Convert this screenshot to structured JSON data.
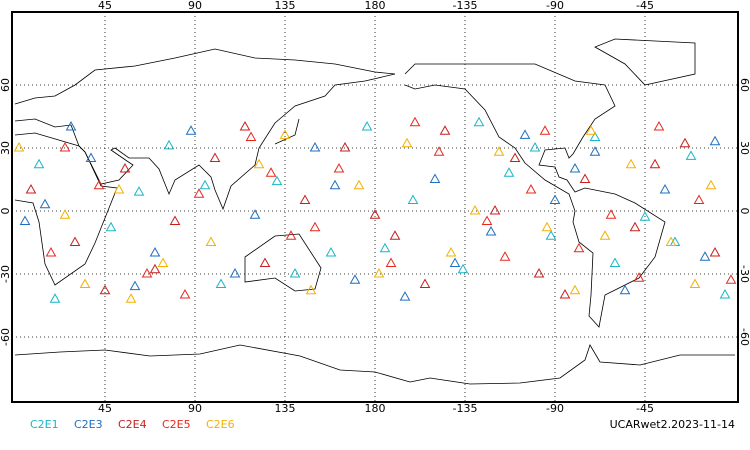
{
  "map": {
    "xlim": [
      0,
      360
    ],
    "ylim": [
      -90,
      90
    ],
    "xticks": [
      45,
      90,
      135,
      180,
      {
        "value": 225,
        "label": "-135"
      },
      {
        "value": 270,
        "label": "-90"
      },
      {
        "value": 315,
        "label": "-45"
      }
    ],
    "yticks": [
      60,
      30,
      0,
      -30,
      -60
    ],
    "series": [
      {
        "name": "C2E1",
        "color": "#17b6c8",
        "lon": [
          12,
          48,
          77,
          103,
          131,
          158,
          176,
          199,
          224,
          247,
          268,
          290,
          315,
          338,
          355,
          62,
          140,
          185,
          232,
          300,
          20,
          95,
          260,
          330
        ],
        "lat": [
          22,
          -8,
          31,
          -35,
          14,
          -20,
          40,
          5,
          -28,
          18,
          -12,
          35,
          -3,
          26,
          -40,
          9,
          -30,
          -18,
          42,
          -25,
          -42,
          12,
          30,
          -15
        ]
      },
      {
        "name": "C2E3",
        "color": "#1f6fc0",
        "lon": [
          5,
          38,
          70,
          88,
          120,
          150,
          170,
          210,
          238,
          255,
          280,
          305,
          325,
          345,
          28,
          110,
          195,
          270,
          350,
          60,
          160,
          220,
          290,
          15
        ],
        "lat": [
          -5,
          25,
          -20,
          38,
          -2,
          30,
          -33,
          15,
          -10,
          36,
          20,
          -38,
          10,
          -22,
          40,
          -30,
          -41,
          5,
          33,
          -36,
          12,
          -25,
          28,
          3
        ]
      },
      {
        "name": "C2E4",
        "color": "#c81e1e",
        "lon": [
          8,
          30,
          55,
          80,
          100,
          125,
          145,
          165,
          190,
          215,
          240,
          262,
          285,
          310,
          335,
          350,
          45,
          115,
          205,
          250,
          275,
          320,
          70,
          180
        ],
        "lat": [
          10,
          -15,
          20,
          -5,
          25,
          -25,
          5,
          30,
          -12,
          38,
          0,
          -30,
          15,
          -8,
          32,
          -20,
          -38,
          40,
          -35,
          25,
          -40,
          22,
          -28,
          -2
        ]
      },
      {
        "name": "C2E5",
        "color": "#e8281e",
        "lon": [
          18,
          42,
          66,
          92,
          118,
          138,
          162,
          188,
          212,
          236,
          258,
          282,
          298,
          322,
          342,
          358,
          85,
          128,
          200,
          245,
          312,
          25,
          150,
          265
        ],
        "lat": [
          -20,
          12,
          -30,
          8,
          35,
          -12,
          20,
          -25,
          28,
          -5,
          10,
          -18,
          -2,
          40,
          5,
          -33,
          -40,
          18,
          42,
          -22,
          -32,
          30,
          -8,
          38
        ]
      },
      {
        "name": "C2E6",
        "color": "#f5b000",
        "lon": [
          2,
          25,
          52,
          74,
          98,
          122,
          148,
          172,
          196,
          218,
          242,
          266,
          288,
          308,
          328,
          348,
          35,
          135,
          230,
          295,
          58,
          182,
          280,
          340
        ],
        "lat": [
          30,
          -2,
          10,
          -25,
          -15,
          22,
          -38,
          12,
          32,
          -20,
          28,
          -8,
          38,
          22,
          -15,
          12,
          -35,
          36,
          0,
          -12,
          -42,
          -30,
          -38,
          -35
        ]
      }
    ],
    "footer": "UCARwet2.2023-11-14"
  }
}
